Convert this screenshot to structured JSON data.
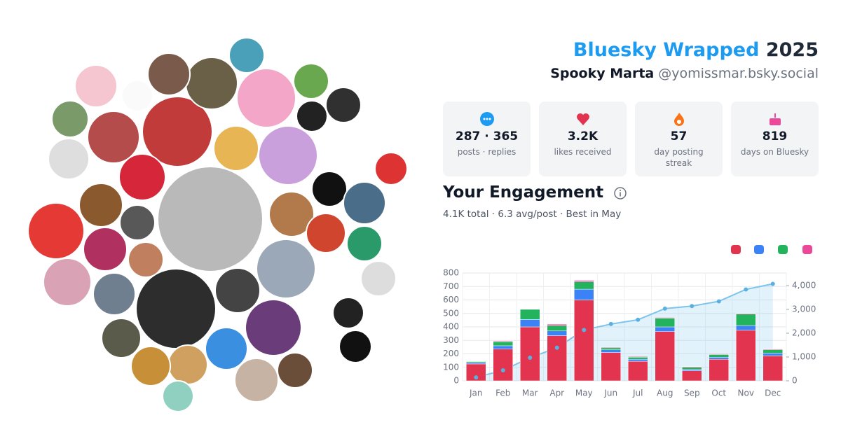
{
  "header": {
    "brand": "Bluesky Wrapped",
    "year": "2025",
    "name": "Spooky Marta",
    "handle": "@yomissmar.bsky.social"
  },
  "stats": [
    {
      "value": "287 · 365",
      "label": "posts · replies"
    },
    {
      "value": "3.2K",
      "label": "likes received"
    },
    {
      "value": "57",
      "label": "day posting streak"
    },
    {
      "value": "819",
      "label": "days on Bluesky"
    }
  ],
  "engagement": {
    "title": "Your Engagement",
    "summary": "4.1K total · 6.3 avg/post · Best in May"
  },
  "chart_data": {
    "type": "bar",
    "stacked": true,
    "grid": true,
    "categories": [
      "Jan",
      "Feb",
      "Mar",
      "Apr",
      "May",
      "Jun",
      "Jul",
      "Aug",
      "Sep",
      "Oct",
      "Nov",
      "Dec"
    ],
    "series": [
      {
        "color": "#e2344f",
        "values": [
          125,
          235,
          400,
          335,
          600,
          210,
          145,
          365,
          75,
          160,
          375,
          185
        ]
      },
      {
        "color": "#3b82f6",
        "values": [
          10,
          25,
          55,
          35,
          80,
          20,
          15,
          35,
          10,
          15,
          35,
          20
        ]
      },
      {
        "color": "#22b35c",
        "values": [
          8,
          30,
          75,
          40,
          55,
          15,
          15,
          65,
          15,
          20,
          85,
          25
        ]
      },
      {
        "color": "#ec4899",
        "values": [
          2,
          5,
          0,
          10,
          10,
          5,
          5,
          5,
          5,
          5,
          5,
          5
        ]
      },
      {
        "type": "line",
        "axis": "y2",
        "color": "#7cc4ec",
        "values": [
          145,
          440,
          970,
          1390,
          2135,
          2385,
          2565,
          3035,
          3140,
          3340,
          3840,
          4075
        ]
      }
    ],
    "ylim": [
      0,
      800
    ],
    "yticks": [
      0,
      100,
      200,
      300,
      400,
      500,
      600,
      700,
      800
    ],
    "y2lim": [
      0,
      4530
    ],
    "y2ticks": [
      0,
      {
        "value": 1000,
        "label": "1,000"
      },
      {
        "value": 2000,
        "label": "2,000"
      },
      {
        "value": 3000,
        "label": "3,000"
      },
      {
        "value": 4000,
        "label": "4,000"
      }
    ]
  }
}
